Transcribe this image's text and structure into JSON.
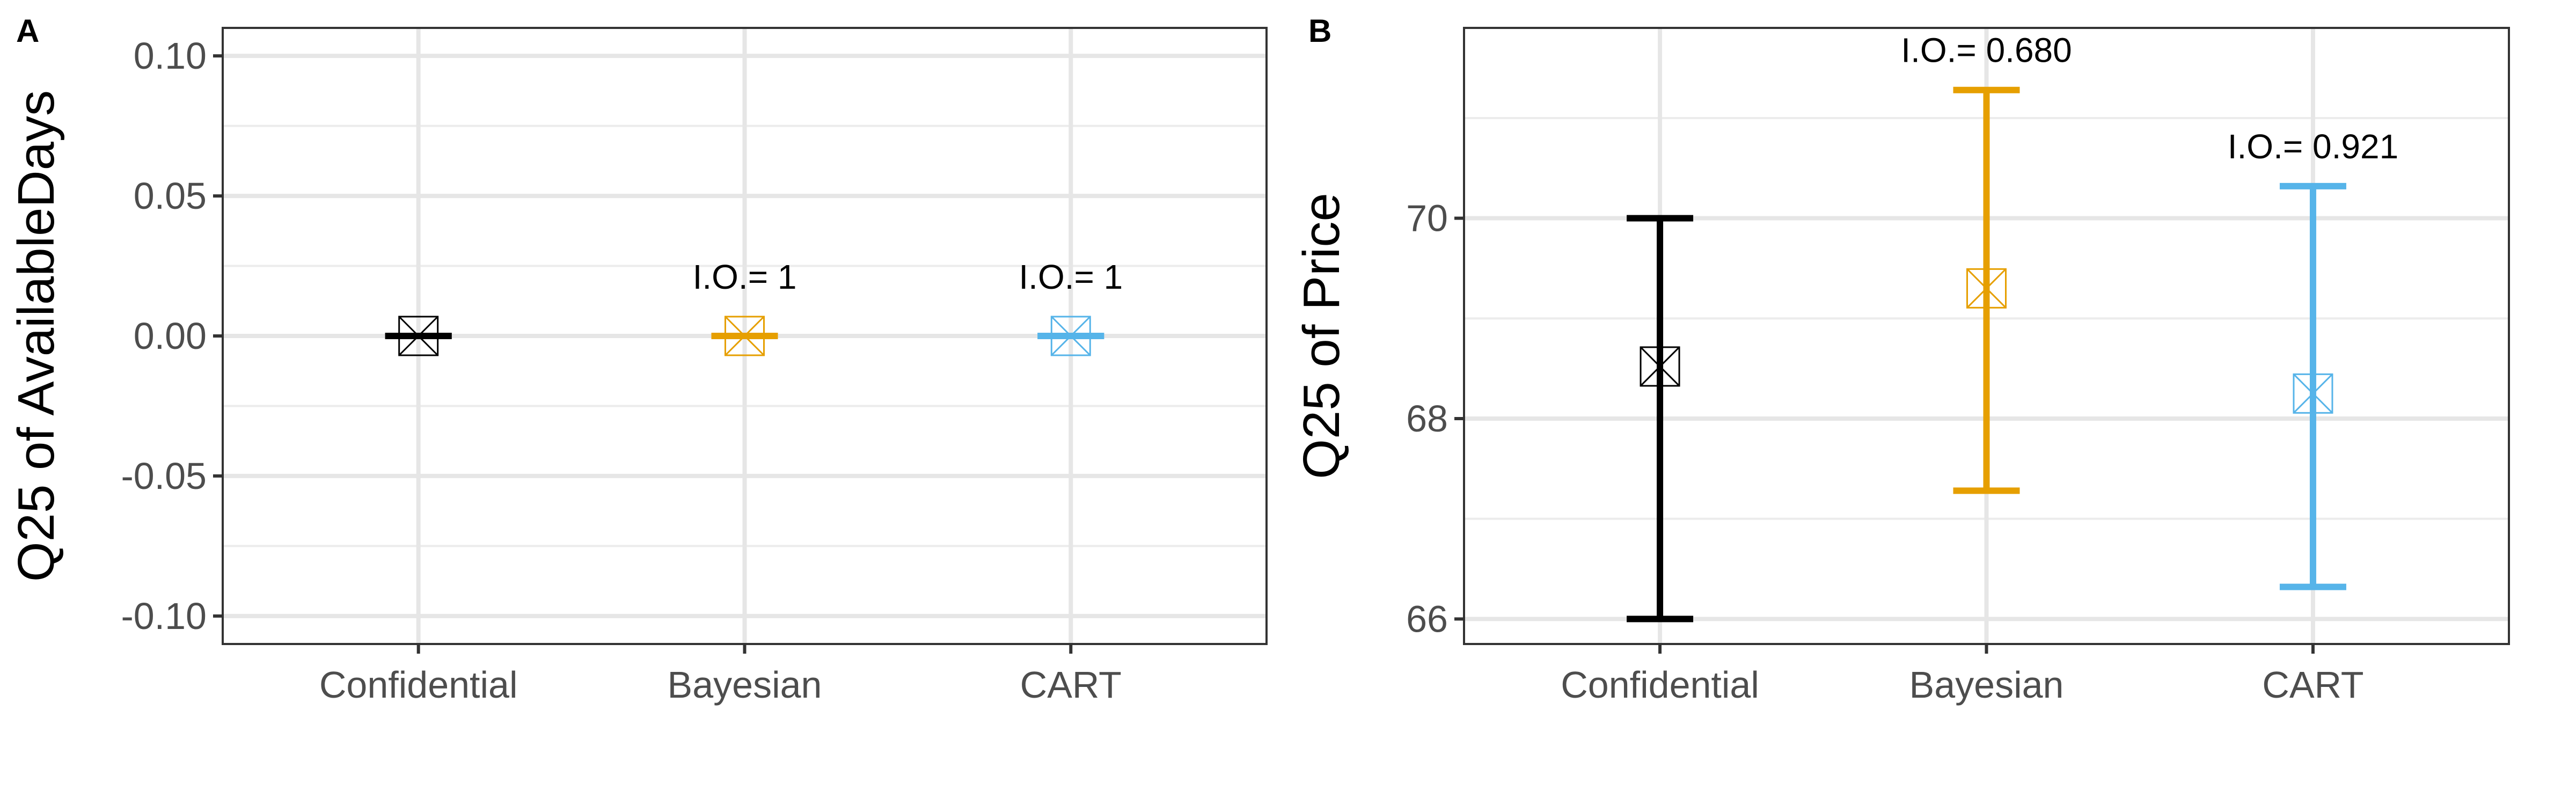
{
  "chart_data": [
    {
      "panel": "A",
      "type": "errorbar",
      "ylabel": "Q25 of AvailableDays",
      "ylim": [
        -0.11,
        0.11
      ],
      "yticks": [
        -0.1,
        -0.05,
        0.0,
        0.05,
        0.1
      ],
      "ytick_labels": [
        "-0.10",
        "-0.05",
        "0.00",
        "0.05",
        "0.10"
      ],
      "categories": [
        "Confidential",
        "Bayesian",
        "CART"
      ],
      "colors": [
        "#000000",
        "#E69F00",
        "#56B4E9"
      ],
      "points": [
        {
          "category": "Confidential",
          "value": 0.0,
          "lower": 0.0,
          "upper": 0.0,
          "label": ""
        },
        {
          "category": "Bayesian",
          "value": 0.0,
          "lower": 0.0,
          "upper": 0.0,
          "label": "I.O.= 1"
        },
        {
          "category": "CART",
          "value": 0.0,
          "lower": 0.0,
          "upper": 0.0,
          "label": "I.O.= 1"
        }
      ],
      "grid": true
    },
    {
      "panel": "B",
      "type": "errorbar",
      "ylabel": "Q25 of Price",
      "ylim": [
        65.75,
        71.9
      ],
      "yticks": [
        66,
        68,
        70
      ],
      "ytick_labels": [
        "66",
        "68",
        "70"
      ],
      "categories": [
        "Confidential",
        "Bayesian",
        "CART"
      ],
      "colors": [
        "#000000",
        "#E69F00",
        "#56B4E9"
      ],
      "points": [
        {
          "category": "Confidential",
          "value": 68.52,
          "lower": 66.0,
          "upper": 70.0,
          "label": ""
        },
        {
          "category": "Bayesian",
          "value": 69.3,
          "lower": 67.28,
          "upper": 71.28,
          "label": "I.O.= 0.680"
        },
        {
          "category": "CART",
          "value": 68.25,
          "lower": 66.32,
          "upper": 70.32,
          "label": "I.O.= 0.921"
        }
      ],
      "grid": true
    }
  ]
}
